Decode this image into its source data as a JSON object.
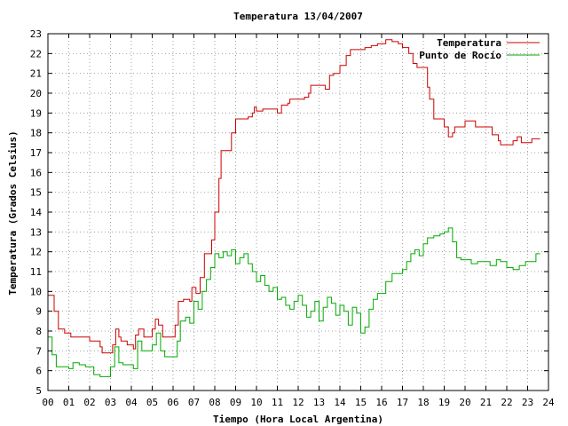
{
  "chart_data": {
    "type": "line",
    "title": "Temperatura 13/04/2007",
    "xlabel": "Tiempo (Hora Local Argentina)",
    "ylabel": "Temperatura (Grados Celsius)",
    "xlim": [
      0,
      24
    ],
    "ylim": [
      5,
      23
    ],
    "x_ticks": [
      "00",
      "01",
      "02",
      "03",
      "04",
      "05",
      "06",
      "07",
      "08",
      "09",
      "10",
      "11",
      "12",
      "13",
      "14",
      "15",
      "16",
      "17",
      "18",
      "19",
      "20",
      "21",
      "22",
      "23",
      "24"
    ],
    "y_ticks": [
      5,
      6,
      7,
      8,
      9,
      10,
      11,
      12,
      13,
      14,
      15,
      16,
      17,
      18,
      19,
      20,
      21,
      22,
      23
    ],
    "grid": true,
    "legend_position": "top-right",
    "series": [
      {
        "name": "Temperatura",
        "color": "#cc0000",
        "points": [
          [
            0.0,
            9.8
          ],
          [
            0.3,
            9.0
          ],
          [
            0.5,
            8.1
          ],
          [
            0.8,
            7.9
          ],
          [
            1.0,
            7.9
          ],
          [
            1.1,
            7.7
          ],
          [
            1.5,
            7.7
          ],
          [
            2.0,
            7.5
          ],
          [
            2.5,
            7.2
          ],
          [
            2.6,
            6.9
          ],
          [
            3.0,
            6.9
          ],
          [
            3.1,
            7.3
          ],
          [
            3.25,
            8.1
          ],
          [
            3.4,
            7.7
          ],
          [
            3.5,
            7.5
          ],
          [
            3.8,
            7.3
          ],
          [
            4.0,
            7.3
          ],
          [
            4.1,
            7.1
          ],
          [
            4.2,
            7.8
          ],
          [
            4.35,
            8.1
          ],
          [
            4.6,
            7.7
          ],
          [
            4.8,
            7.7
          ],
          [
            5.0,
            8.1
          ],
          [
            5.15,
            8.6
          ],
          [
            5.3,
            8.3
          ],
          [
            5.5,
            7.7
          ],
          [
            5.8,
            7.7
          ],
          [
            6.0,
            7.7
          ],
          [
            6.1,
            8.3
          ],
          [
            6.25,
            9.5
          ],
          [
            6.5,
            9.6
          ],
          [
            6.8,
            9.5
          ],
          [
            6.9,
            10.2
          ],
          [
            7.1,
            9.9
          ],
          [
            7.3,
            10.7
          ],
          [
            7.5,
            11.9
          ],
          [
            7.7,
            11.9
          ],
          [
            7.85,
            12.6
          ],
          [
            8.0,
            14.0
          ],
          [
            8.2,
            15.7
          ],
          [
            8.3,
            17.1
          ],
          [
            8.6,
            17.1
          ],
          [
            8.8,
            18.0
          ],
          [
            9.0,
            18.7
          ],
          [
            9.3,
            18.7
          ],
          [
            9.6,
            18.8
          ],
          [
            9.8,
            19.0
          ],
          [
            9.9,
            19.3
          ],
          [
            10.0,
            19.1
          ],
          [
            10.3,
            19.2
          ],
          [
            10.5,
            19.2
          ],
          [
            10.8,
            19.2
          ],
          [
            11.0,
            19.0
          ],
          [
            11.2,
            19.4
          ],
          [
            11.5,
            19.5
          ],
          [
            11.6,
            19.7
          ],
          [
            12.0,
            19.7
          ],
          [
            12.3,
            19.8
          ],
          [
            12.5,
            20.0
          ],
          [
            12.6,
            20.4
          ],
          [
            13.0,
            20.4
          ],
          [
            13.3,
            20.2
          ],
          [
            13.5,
            20.9
          ],
          [
            13.7,
            21.0
          ],
          [
            14.0,
            21.4
          ],
          [
            14.3,
            21.9
          ],
          [
            14.5,
            22.2
          ],
          [
            15.0,
            22.2
          ],
          [
            15.2,
            22.3
          ],
          [
            15.5,
            22.4
          ],
          [
            15.8,
            22.5
          ],
          [
            16.0,
            22.5
          ],
          [
            16.2,
            22.7
          ],
          [
            16.5,
            22.6
          ],
          [
            16.8,
            22.5
          ],
          [
            17.0,
            22.3
          ],
          [
            17.3,
            22.0
          ],
          [
            17.5,
            21.5
          ],
          [
            17.7,
            21.3
          ],
          [
            18.0,
            21.3
          ],
          [
            18.2,
            20.3
          ],
          [
            18.3,
            19.7
          ],
          [
            18.5,
            18.7
          ],
          [
            18.7,
            18.7
          ],
          [
            18.8,
            18.7
          ],
          [
            19.0,
            18.3
          ],
          [
            19.2,
            17.8
          ],
          [
            19.4,
            18.0
          ],
          [
            19.5,
            18.3
          ],
          [
            19.8,
            18.3
          ],
          [
            20.0,
            18.6
          ],
          [
            20.3,
            18.6
          ],
          [
            20.5,
            18.3
          ],
          [
            21.0,
            18.3
          ],
          [
            21.3,
            17.9
          ],
          [
            21.6,
            17.6
          ],
          [
            21.7,
            17.4
          ],
          [
            22.0,
            17.4
          ],
          [
            22.3,
            17.6
          ],
          [
            22.5,
            17.8
          ],
          [
            22.7,
            17.5
          ],
          [
            23.0,
            17.5
          ],
          [
            23.2,
            17.7
          ],
          [
            23.6,
            17.7
          ]
        ]
      },
      {
        "name": "Punto de Rocío",
        "color": "#00aa00",
        "points": [
          [
            0.0,
            7.7
          ],
          [
            0.2,
            6.8
          ],
          [
            0.4,
            6.2
          ],
          [
            0.8,
            6.2
          ],
          [
            1.0,
            6.1
          ],
          [
            1.2,
            6.4
          ],
          [
            1.5,
            6.3
          ],
          [
            1.8,
            6.2
          ],
          [
            2.2,
            5.8
          ],
          [
            2.5,
            5.7
          ],
          [
            2.8,
            5.7
          ],
          [
            3.0,
            6.2
          ],
          [
            3.2,
            7.2
          ],
          [
            3.4,
            6.4
          ],
          [
            3.6,
            6.3
          ],
          [
            3.9,
            6.3
          ],
          [
            4.1,
            6.1
          ],
          [
            4.3,
            7.5
          ],
          [
            4.5,
            7.0
          ],
          [
            4.8,
            7.0
          ],
          [
            5.0,
            7.3
          ],
          [
            5.2,
            7.9
          ],
          [
            5.4,
            7.0
          ],
          [
            5.6,
            6.7
          ],
          [
            6.0,
            6.7
          ],
          [
            6.2,
            7.5
          ],
          [
            6.35,
            8.5
          ],
          [
            6.6,
            8.7
          ],
          [
            6.8,
            8.4
          ],
          [
            7.0,
            9.5
          ],
          [
            7.2,
            9.1
          ],
          [
            7.4,
            10.0
          ],
          [
            7.6,
            10.6
          ],
          [
            7.8,
            11.2
          ],
          [
            8.0,
            11.9
          ],
          [
            8.2,
            11.7
          ],
          [
            8.4,
            12.0
          ],
          [
            8.6,
            11.8
          ],
          [
            8.8,
            12.1
          ],
          [
            9.0,
            11.4
          ],
          [
            9.2,
            11.7
          ],
          [
            9.4,
            11.9
          ],
          [
            9.6,
            11.4
          ],
          [
            9.8,
            11.0
          ],
          [
            10.0,
            10.5
          ],
          [
            10.2,
            10.8
          ],
          [
            10.4,
            10.3
          ],
          [
            10.6,
            10.0
          ],
          [
            10.8,
            10.2
          ],
          [
            11.0,
            9.6
          ],
          [
            11.2,
            9.7
          ],
          [
            11.4,
            9.3
          ],
          [
            11.6,
            9.1
          ],
          [
            11.8,
            9.5
          ],
          [
            12.0,
            9.8
          ],
          [
            12.2,
            9.3
          ],
          [
            12.4,
            8.7
          ],
          [
            12.6,
            9.0
          ],
          [
            12.8,
            9.5
          ],
          [
            13.0,
            8.5
          ],
          [
            13.2,
            9.2
          ],
          [
            13.4,
            9.7
          ],
          [
            13.6,
            9.4
          ],
          [
            13.8,
            8.8
          ],
          [
            14.0,
            9.3
          ],
          [
            14.2,
            9.0
          ],
          [
            14.4,
            8.3
          ],
          [
            14.6,
            9.2
          ],
          [
            14.8,
            8.9
          ],
          [
            15.0,
            7.9
          ],
          [
            15.2,
            8.2
          ],
          [
            15.4,
            9.1
          ],
          [
            15.6,
            9.6
          ],
          [
            15.8,
            9.9
          ],
          [
            16.0,
            9.9
          ],
          [
            16.2,
            10.5
          ],
          [
            16.5,
            10.9
          ],
          [
            16.8,
            10.9
          ],
          [
            17.0,
            11.1
          ],
          [
            17.2,
            11.5
          ],
          [
            17.4,
            11.9
          ],
          [
            17.6,
            12.1
          ],
          [
            17.8,
            11.8
          ],
          [
            18.0,
            12.4
          ],
          [
            18.2,
            12.7
          ],
          [
            18.5,
            12.8
          ],
          [
            18.8,
            12.9
          ],
          [
            19.0,
            13.0
          ],
          [
            19.2,
            13.2
          ],
          [
            19.4,
            12.5
          ],
          [
            19.6,
            11.7
          ],
          [
            19.8,
            11.6
          ],
          [
            20.0,
            11.6
          ],
          [
            20.3,
            11.4
          ],
          [
            20.6,
            11.5
          ],
          [
            21.0,
            11.5
          ],
          [
            21.2,
            11.3
          ],
          [
            21.5,
            11.6
          ],
          [
            21.7,
            11.5
          ],
          [
            22.0,
            11.2
          ],
          [
            22.3,
            11.1
          ],
          [
            22.6,
            11.3
          ],
          [
            22.9,
            11.5
          ],
          [
            23.2,
            11.5
          ],
          [
            23.4,
            11.9
          ],
          [
            23.6,
            11.9
          ]
        ]
      }
    ]
  }
}
